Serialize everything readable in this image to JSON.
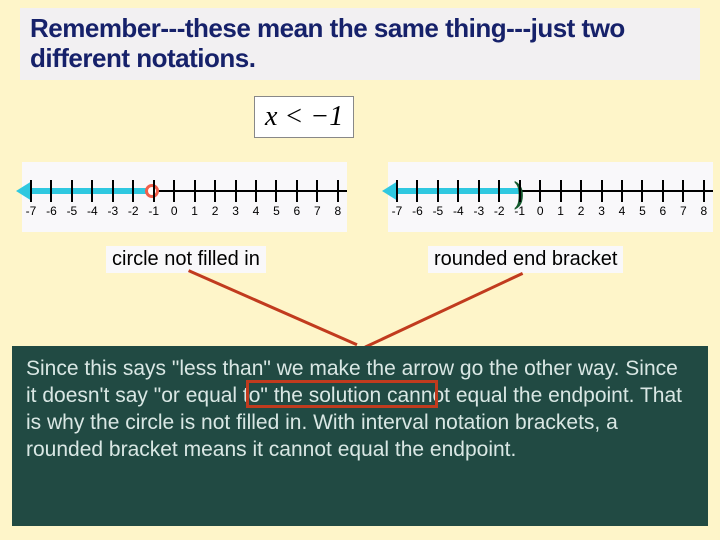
{
  "colors": {
    "slide_bg": "#fef5c9",
    "title_bg": "#f2f0f2",
    "title_color": "#16216a",
    "nl_bg": "#f9f8fa",
    "shade_blue": "#2fc8e0",
    "open_circle_border": "#f25f4a",
    "paren_color": "#145a2e",
    "caption_bg": "#f9f8fa",
    "callout_red": "#c13b1e",
    "explain_bg": "#214a43",
    "explain_text": "#d9e7e4",
    "highlight_rect": "#c13b1e"
  },
  "title": "Remember---these mean the same thing---just two different notations.",
  "inequality": "x < −1",
  "number_line": {
    "ticks": [
      "-7",
      "-6",
      "-5",
      "-4",
      "-3",
      "-2",
      "-1",
      "0",
      "1",
      "2",
      "3",
      "4",
      "5",
      "6",
      "7",
      "8"
    ],
    "endpoint_index": 6,
    "direction": "left"
  },
  "left_line": {
    "marker": "open-circle",
    "caption": "circle not filled in"
  },
  "right_line": {
    "marker": "paren",
    "paren_char": ")",
    "caption": "rounded end bracket"
  },
  "explanation": "Since this says \"less than\" we make the arrow go the other way.  Since it doesn't say \"or equal to\" the solution cannot equal the endpoint.  That is why the circle is not filled in.  With interval notation brackets, a rounded bracket means it cannot equal the endpoint.",
  "highlight_phrase": "\"or equal to\""
}
